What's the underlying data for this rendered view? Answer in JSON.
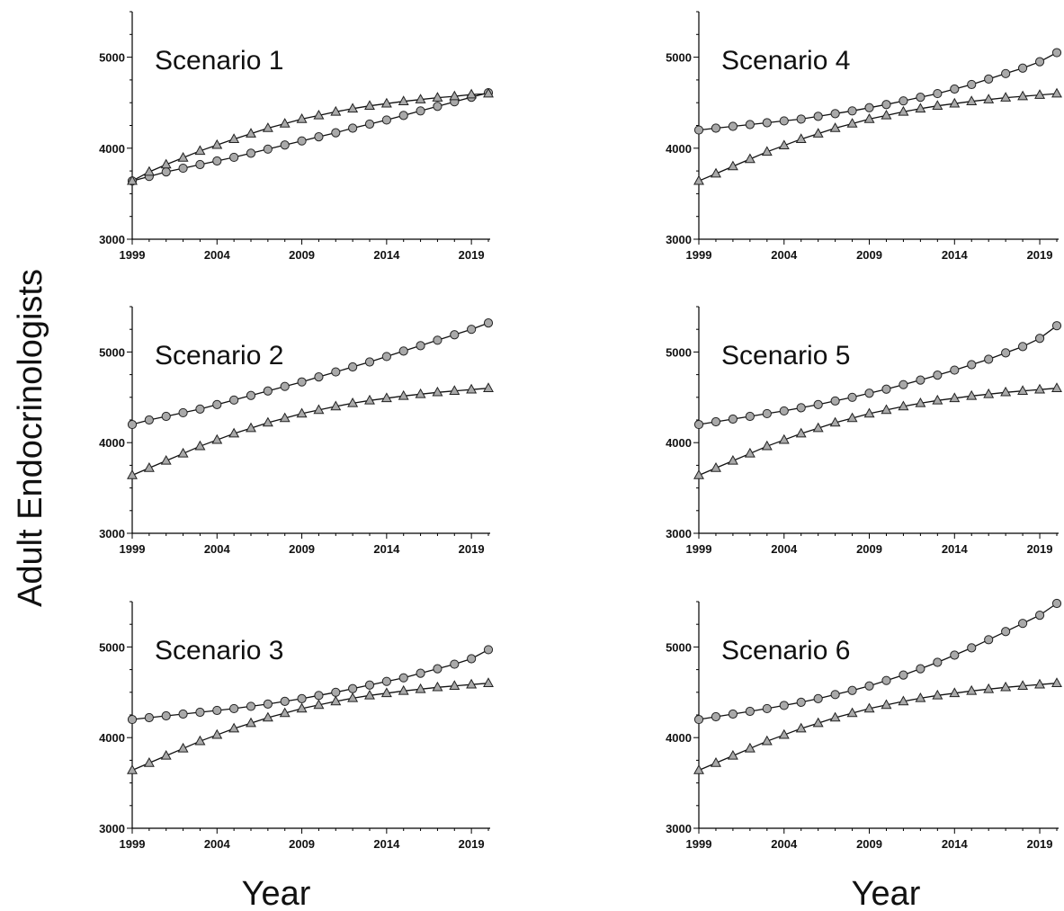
{
  "ylabel": "Adult Endocrinologists",
  "xlabel": "Year",
  "chart_data": [
    {
      "type": "line",
      "title": "Scenario 1",
      "x": [
        1999,
        2000,
        2001,
        2002,
        2003,
        2004,
        2005,
        2006,
        2007,
        2008,
        2009,
        2010,
        2011,
        2012,
        2013,
        2014,
        2015,
        2016,
        2017,
        2018,
        2019,
        2020
      ],
      "series": [
        {
          "marker": "circle",
          "values": [
            3640,
            3690,
            3740,
            3780,
            3820,
            3860,
            3900,
            3945,
            3990,
            4035,
            4080,
            4125,
            4170,
            4220,
            4265,
            4310,
            4360,
            4410,
            4460,
            4510,
            4560,
            4610
          ]
        },
        {
          "marker": "triangle",
          "values": [
            3640,
            3740,
            3820,
            3895,
            3970,
            4035,
            4100,
            4160,
            4220,
            4270,
            4320,
            4360,
            4400,
            4435,
            4465,
            4490,
            4515,
            4535,
            4555,
            4570,
            4590,
            4600
          ]
        }
      ],
      "xticks": [
        1999,
        2004,
        2009,
        2014,
        2019
      ],
      "yticks": [
        3000,
        4000,
        5000
      ],
      "xlim": [
        1999,
        2020
      ],
      "ylim": [
        3000,
        5500
      ]
    },
    {
      "type": "line",
      "title": "Scenario 2",
      "x": [
        1999,
        2000,
        2001,
        2002,
        2003,
        2004,
        2005,
        2006,
        2007,
        2008,
        2009,
        2010,
        2011,
        2012,
        2013,
        2014,
        2015,
        2016,
        2017,
        2018,
        2019,
        2020
      ],
      "series": [
        {
          "marker": "circle",
          "values": [
            4200,
            4250,
            4290,
            4330,
            4370,
            4420,
            4470,
            4520,
            4570,
            4620,
            4670,
            4725,
            4780,
            4835,
            4890,
            4950,
            5010,
            5070,
            5130,
            5190,
            5250,
            5320
          ]
        },
        {
          "marker": "triangle",
          "values": [
            3640,
            3720,
            3800,
            3880,
            3960,
            4030,
            4100,
            4160,
            4220,
            4270,
            4320,
            4360,
            4400,
            4435,
            4465,
            4490,
            4515,
            4535,
            4555,
            4570,
            4585,
            4600
          ]
        }
      ],
      "xticks": [
        1999,
        2004,
        2009,
        2014,
        2019
      ],
      "yticks": [
        3000,
        4000,
        5000
      ],
      "xlim": [
        1999,
        2020
      ],
      "ylim": [
        3000,
        5500
      ]
    },
    {
      "type": "line",
      "title": "Scenario 3",
      "x": [
        1999,
        2000,
        2001,
        2002,
        2003,
        2004,
        2005,
        2006,
        2007,
        2008,
        2009,
        2010,
        2011,
        2012,
        2013,
        2014,
        2015,
        2016,
        2017,
        2018,
        2019,
        2020
      ],
      "series": [
        {
          "marker": "circle",
          "values": [
            4200,
            4220,
            4240,
            4260,
            4280,
            4300,
            4320,
            4345,
            4370,
            4400,
            4430,
            4465,
            4500,
            4540,
            4580,
            4620,
            4660,
            4710,
            4760,
            4810,
            4870,
            4970
          ]
        },
        {
          "marker": "triangle",
          "values": [
            3640,
            3720,
            3800,
            3880,
            3960,
            4030,
            4100,
            4160,
            4220,
            4270,
            4320,
            4360,
            4400,
            4435,
            4465,
            4490,
            4515,
            4535,
            4555,
            4570,
            4585,
            4600
          ]
        }
      ],
      "xticks": [
        1999,
        2004,
        2009,
        2014,
        2019
      ],
      "yticks": [
        3000,
        4000,
        5000
      ],
      "xlim": [
        1999,
        2020
      ],
      "ylim": [
        3000,
        5500
      ]
    },
    {
      "type": "line",
      "title": "Scenario 4",
      "x": [
        1999,
        2000,
        2001,
        2002,
        2003,
        2004,
        2005,
        2006,
        2007,
        2008,
        2009,
        2010,
        2011,
        2012,
        2013,
        2014,
        2015,
        2016,
        2017,
        2018,
        2019,
        2020
      ],
      "series": [
        {
          "marker": "circle",
          "values": [
            4200,
            4220,
            4240,
            4260,
            4280,
            4300,
            4320,
            4350,
            4380,
            4410,
            4445,
            4480,
            4520,
            4560,
            4600,
            4650,
            4700,
            4760,
            4820,
            4880,
            4950,
            5050
          ]
        },
        {
          "marker": "triangle",
          "values": [
            3640,
            3720,
            3800,
            3880,
            3960,
            4030,
            4100,
            4160,
            4220,
            4270,
            4320,
            4360,
            4400,
            4435,
            4465,
            4490,
            4515,
            4535,
            4555,
            4570,
            4585,
            4600
          ]
        }
      ],
      "xticks": [
        1999,
        2004,
        2009,
        2014,
        2019
      ],
      "yticks": [
        3000,
        4000,
        5000
      ],
      "xlim": [
        1999,
        2020
      ],
      "ylim": [
        3000,
        5500
      ]
    },
    {
      "type": "line",
      "title": "Scenario 5",
      "x": [
        1999,
        2000,
        2001,
        2002,
        2003,
        2004,
        2005,
        2006,
        2007,
        2008,
        2009,
        2010,
        2011,
        2012,
        2013,
        2014,
        2015,
        2016,
        2017,
        2018,
        2019,
        2020
      ],
      "series": [
        {
          "marker": "circle",
          "values": [
            4200,
            4230,
            4260,
            4290,
            4320,
            4350,
            4385,
            4420,
            4460,
            4500,
            4545,
            4590,
            4640,
            4690,
            4745,
            4800,
            4860,
            4920,
            4990,
            5060,
            5150,
            5290
          ]
        },
        {
          "marker": "triangle",
          "values": [
            3640,
            3720,
            3800,
            3880,
            3960,
            4030,
            4100,
            4160,
            4220,
            4270,
            4320,
            4360,
            4400,
            4435,
            4465,
            4490,
            4515,
            4535,
            4555,
            4570,
            4585,
            4600
          ]
        }
      ],
      "xticks": [
        1999,
        2004,
        2009,
        2014,
        2019
      ],
      "yticks": [
        3000,
        4000,
        5000
      ],
      "xlim": [
        1999,
        2020
      ],
      "ylim": [
        3000,
        5500
      ]
    },
    {
      "type": "line",
      "title": "Scenario 6",
      "x": [
        1999,
        2000,
        2001,
        2002,
        2003,
        2004,
        2005,
        2006,
        2007,
        2008,
        2009,
        2010,
        2011,
        2012,
        2013,
        2014,
        2015,
        2016,
        2017,
        2018,
        2019,
        2020
      ],
      "series": [
        {
          "marker": "circle",
          "values": [
            4200,
            4230,
            4260,
            4290,
            4320,
            4355,
            4390,
            4430,
            4475,
            4520,
            4570,
            4630,
            4690,
            4760,
            4830,
            4910,
            4990,
            5080,
            5170,
            5260,
            5350,
            5480
          ]
        },
        {
          "marker": "triangle",
          "values": [
            3640,
            3720,
            3800,
            3880,
            3960,
            4030,
            4100,
            4160,
            4220,
            4270,
            4320,
            4360,
            4400,
            4435,
            4465,
            4490,
            4515,
            4535,
            4555,
            4570,
            4585,
            4600
          ]
        }
      ],
      "xticks": [
        1999,
        2004,
        2009,
        2014,
        2019
      ],
      "yticks": [
        3000,
        4000,
        5000
      ],
      "xlim": [
        1999,
        2020
      ],
      "ylim": [
        3000,
        5500
      ]
    }
  ]
}
